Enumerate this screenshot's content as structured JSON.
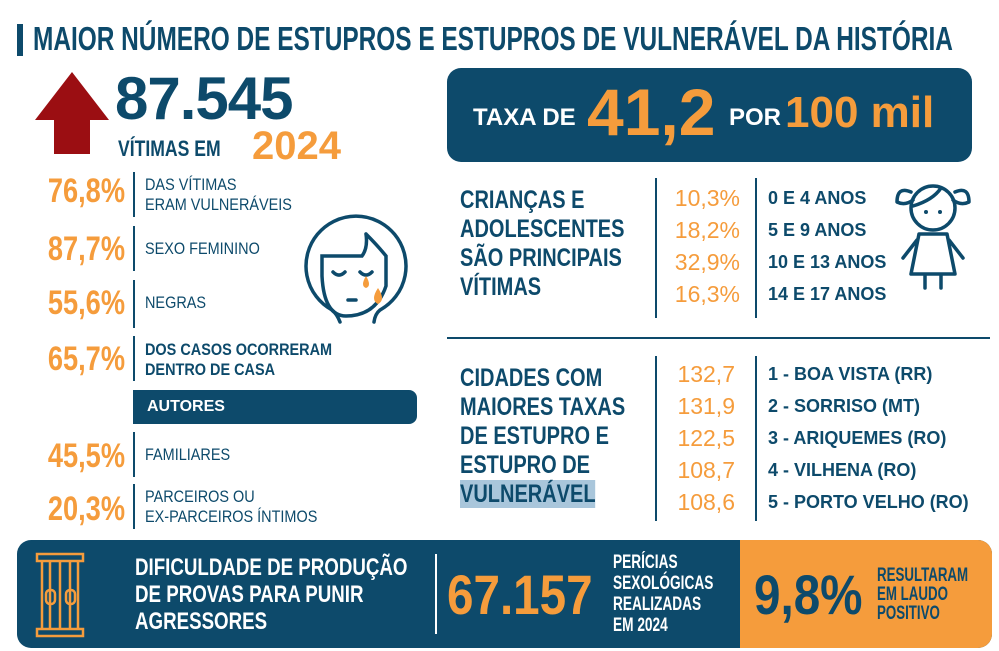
{
  "colors": {
    "primary": "#0d4a6b",
    "accent": "#f59c3c",
    "arrow": "#9b0e12"
  },
  "title": "MAIOR NÚMERO DE ESTUPROS E ESTUPROS DE VULNERÁVEL DA HISTÓRIA",
  "headline": {
    "icon": "arrow-up-icon",
    "number": "87.545",
    "label": "VÍTIMAS EM",
    "year": "2024"
  },
  "stats": [
    {
      "value": "76,8%",
      "line1": "DAS VÍTIMAS",
      "line2": "ERAM VULNERÁVEIS"
    },
    {
      "value": "87,7%",
      "line1": "SEXO FEMININO"
    },
    {
      "value": "55,6%",
      "line1": "NEGRAS"
    },
    {
      "value": "65,7%",
      "line1": "DOS CASOS OCORRERAM",
      "line2": "DENTRO DE CASA"
    }
  ],
  "authors": {
    "label": "AUTORES",
    "items": [
      {
        "value": "45,5%",
        "line1": "FAMILIARES"
      },
      {
        "value": "20,3%",
        "line1": "PARCEIROS OU",
        "line2": "EX-PARCEIROS ÍNTIMOS"
      }
    ]
  },
  "rate": {
    "prefix": "TAXA DE",
    "value": "41,2",
    "mid": "POR",
    "per": "100 mil"
  },
  "children": {
    "lines": [
      "CRIANÇAS E",
      "ADOLESCENTES",
      "SÃO PRINCIPAIS",
      "VÍTIMAS"
    ],
    "values": [
      "10,3%",
      "18,2%",
      "32,9%",
      "16,3%"
    ],
    "ages": [
      "0 E 4 ANOS",
      "5 E 9 ANOS",
      "10 E 13 ANOS",
      "14 E 17 ANOS"
    ]
  },
  "cities": {
    "lines": [
      "CIDADES COM",
      "MAIORES TAXAS",
      "DE ESTUPRO E",
      "ESTUPRO DE",
      "VULNERÁVEL"
    ],
    "values": [
      "132,7",
      "131,9",
      "122,5",
      "108,7",
      "108,6"
    ],
    "names": [
      "1 - BOA VISTA (RR)",
      "2 - SORRISO (MT)",
      "3 - ARIQUEMES (RO)",
      "4 - VILHENA (RO)",
      "5 - PORTO VELHO (RO)"
    ]
  },
  "banner": {
    "lines": [
      "DIFICULDADE DE PRODUÇÃO",
      "DE PROVAS PARA PUNIR",
      "AGRESSORES"
    ],
    "number": "67.157",
    "number_lines": [
      "PERÍCIAS",
      "SEXOLÓGICAS",
      "REALIZADAS",
      "EM 2024"
    ],
    "pct": "9,8%",
    "pct_lines": [
      "RESULTARAM",
      "EM LAUDO",
      "POSITIVO"
    ]
  }
}
